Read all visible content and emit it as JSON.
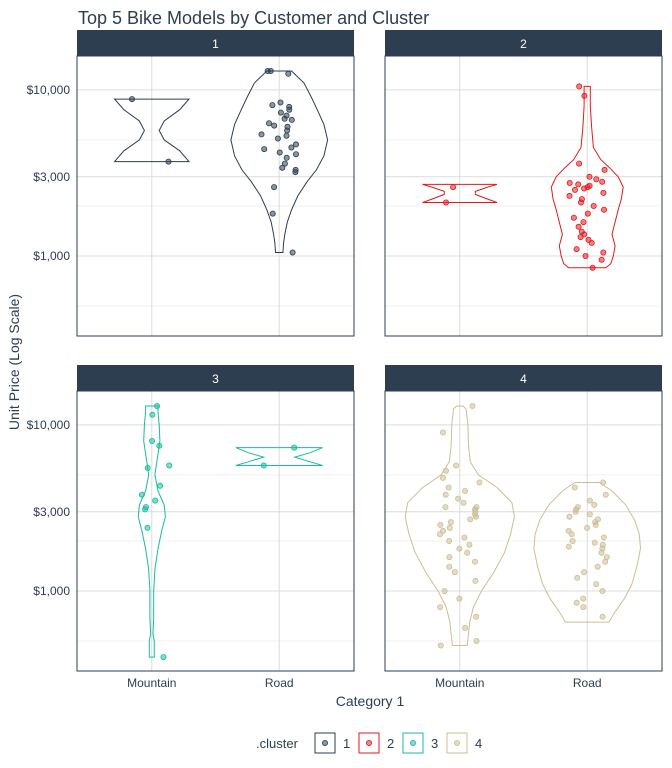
{
  "chart_data": {
    "type": "violin",
    "title": "Top 5 Bike Models by Customer and Cluster",
    "xlabel": "Category 1",
    "ylabel": "Unit Price (Log Scale)",
    "y_scale": "log10",
    "ylim": [
      330,
      16000
    ],
    "y_ticks": [
      1000,
      3000,
      10000
    ],
    "y_tick_labels": [
      "$1,000",
      "$3,000",
      "$10,000"
    ],
    "categories": [
      "Mountain",
      "Road"
    ],
    "grid": true,
    "legend": {
      "title": ".cluster",
      "position": "bottom",
      "entries": [
        "1",
        "2",
        "3",
        "4"
      ]
    },
    "colors": {
      "1": "#2c3e50",
      "2": "#e31a1c",
      "3": "#18bc9c",
      "4": "#ccbe93"
    },
    "strip_fill": "#2c3e50",
    "panels": [
      {
        "cluster": "1",
        "points": {
          "Mountain": [
            8800,
            3700
          ],
          "Road": [
            13000,
            13000,
            12500,
            8400,
            8100,
            7900,
            7600,
            7300,
            7000,
            6700,
            6600,
            6300,
            6100,
            6000,
            5700,
            5400,
            5300,
            5100,
            4700,
            4500,
            4400,
            4200,
            4100,
            3900,
            3600,
            3400,
            3300,
            3200,
            2600,
            1800,
            1050
          ]
        },
        "violins": {
          "Mountain": [
            [
              3700,
              0.6
            ],
            [
              4300,
              0.45
            ],
            [
              5000,
              0.2
            ],
            [
              5700,
              0.12
            ],
            [
              6500,
              0.2
            ],
            [
              7600,
              0.45
            ],
            [
              8800,
              0.6
            ]
          ],
          "Road": [
            [
              1050,
              0.06
            ],
            [
              1200,
              0.07
            ],
            [
              1350,
              0.09
            ],
            [
              1600,
              0.13
            ],
            [
              1900,
              0.2
            ],
            [
              2300,
              0.3
            ],
            [
              2800,
              0.45
            ],
            [
              3300,
              0.6
            ],
            [
              4000,
              0.72
            ],
            [
              5000,
              0.78
            ],
            [
              6200,
              0.72
            ],
            [
              7500,
              0.62
            ],
            [
              9000,
              0.52
            ],
            [
              11000,
              0.4
            ],
            [
              13000,
              0.2
            ]
          ]
        }
      },
      {
        "cluster": "2",
        "points": {
          "Mountain": [
            2600,
            2100
          ],
          "Road": [
            10500,
            9200,
            3600,
            3300,
            3000,
            2900,
            2800,
            2750,
            2700,
            2650,
            2600,
            2550,
            2500,
            2400,
            2300,
            2200,
            2100,
            2000,
            1900,
            1800,
            1700,
            1600,
            1500,
            1400,
            1350,
            1300,
            1250,
            1200,
            1100,
            1050,
            1000,
            950,
            850
          ]
        },
        "violins": {
          "Mountain": [
            [
              2100,
              0.6
            ],
            [
              2200,
              0.45
            ],
            [
              2350,
              0.25
            ],
            [
              2450,
              0.25
            ],
            [
              2600,
              0.45
            ],
            [
              2700,
              0.6
            ]
          ],
          "Road": [
            [
              850,
              0.3
            ],
            [
              900,
              0.38
            ],
            [
              1000,
              0.42
            ],
            [
              1150,
              0.45
            ],
            [
              1350,
              0.4
            ],
            [
              1600,
              0.45
            ],
            [
              1900,
              0.5
            ],
            [
              2200,
              0.55
            ],
            [
              2600,
              0.58
            ],
            [
              3000,
              0.5
            ],
            [
              3400,
              0.36
            ],
            [
              3800,
              0.22
            ],
            [
              4500,
              0.1
            ],
            [
              6000,
              0.07
            ],
            [
              8000,
              0.05
            ],
            [
              10500,
              0.05
            ]
          ]
        }
      },
      {
        "cluster": "3",
        "points": {
          "Mountain": [
            13000,
            11500,
            8000,
            7500,
            5700,
            5500,
            4300,
            3800,
            3500,
            3200,
            3100,
            2400,
            400
          ],
          "Road": [
            7300,
            5700
          ]
        },
        "violins": {
          "Mountain": [
            [
              400,
              0.04
            ],
            [
              500,
              0.04
            ],
            [
              550,
              0.02
            ],
            [
              700,
              0.03
            ],
            [
              1000,
              0.03
            ],
            [
              1350,
              0.05
            ],
            [
              1800,
              0.1
            ],
            [
              2300,
              0.16
            ],
            [
              2800,
              0.22
            ],
            [
              3300,
              0.2
            ],
            [
              4000,
              0.1
            ],
            [
              5000,
              0.05
            ],
            [
              6000,
              0.08
            ],
            [
              8000,
              0.13
            ],
            [
              10000,
              0.12
            ],
            [
              12000,
              0.1
            ],
            [
              13000,
              0.1
            ]
          ],
          "Road": [
            [
              5700,
              0.7
            ],
            [
              6000,
              0.5
            ],
            [
              6400,
              0.25
            ],
            [
              6800,
              0.5
            ],
            [
              7300,
              0.7
            ]
          ]
        }
      },
      {
        "cluster": "4",
        "points": {
          "Mountain": [
            13000,
            9000,
            5700,
            5300,
            4800,
            4500,
            4200,
            4000,
            3800,
            3600,
            3400,
            3200,
            3200,
            3100,
            3000,
            2900,
            2800,
            2700,
            2600,
            2500,
            2400,
            2300,
            2200,
            2100,
            2000,
            1900,
            1800,
            1700,
            1600,
            1500,
            1400,
            1300,
            1150,
            1000,
            900,
            800,
            700,
            600,
            500,
            470
          ],
          "Road": [
            4500,
            4200,
            3800,
            3500,
            3300,
            3200,
            3100,
            3000,
            2900,
            2800,
            2700,
            2600,
            2500,
            2400,
            2300,
            2200,
            2100,
            2000,
            1950,
            1900,
            1850,
            1800,
            1700,
            1600,
            1500,
            1400,
            1300,
            1200,
            1100,
            1000,
            900,
            850,
            800,
            700
          ]
        },
        "violins": {
          "Mountain": [
            [
              470,
              0.12
            ],
            [
              550,
              0.14
            ],
            [
              650,
              0.16
            ],
            [
              800,
              0.22
            ],
            [
              1000,
              0.35
            ],
            [
              1300,
              0.55
            ],
            [
              1700,
              0.72
            ],
            [
              2200,
              0.82
            ],
            [
              2800,
              0.88
            ],
            [
              3400,
              0.84
            ],
            [
              4200,
              0.6
            ],
            [
              5000,
              0.3
            ],
            [
              6000,
              0.17
            ],
            [
              7500,
              0.14
            ],
            [
              10000,
              0.13
            ],
            [
              12500,
              0.1
            ],
            [
              13000,
              0.05
            ]
          ],
          "Road": [
            [
              650,
              0.35
            ],
            [
              750,
              0.45
            ],
            [
              900,
              0.6
            ],
            [
              1100,
              0.72
            ],
            [
              1400,
              0.8
            ],
            [
              1800,
              0.86
            ],
            [
              2200,
              0.84
            ],
            [
              2700,
              0.76
            ],
            [
              3300,
              0.62
            ],
            [
              4000,
              0.4
            ],
            [
              4500,
              0.2
            ]
          ]
        }
      }
    ]
  }
}
